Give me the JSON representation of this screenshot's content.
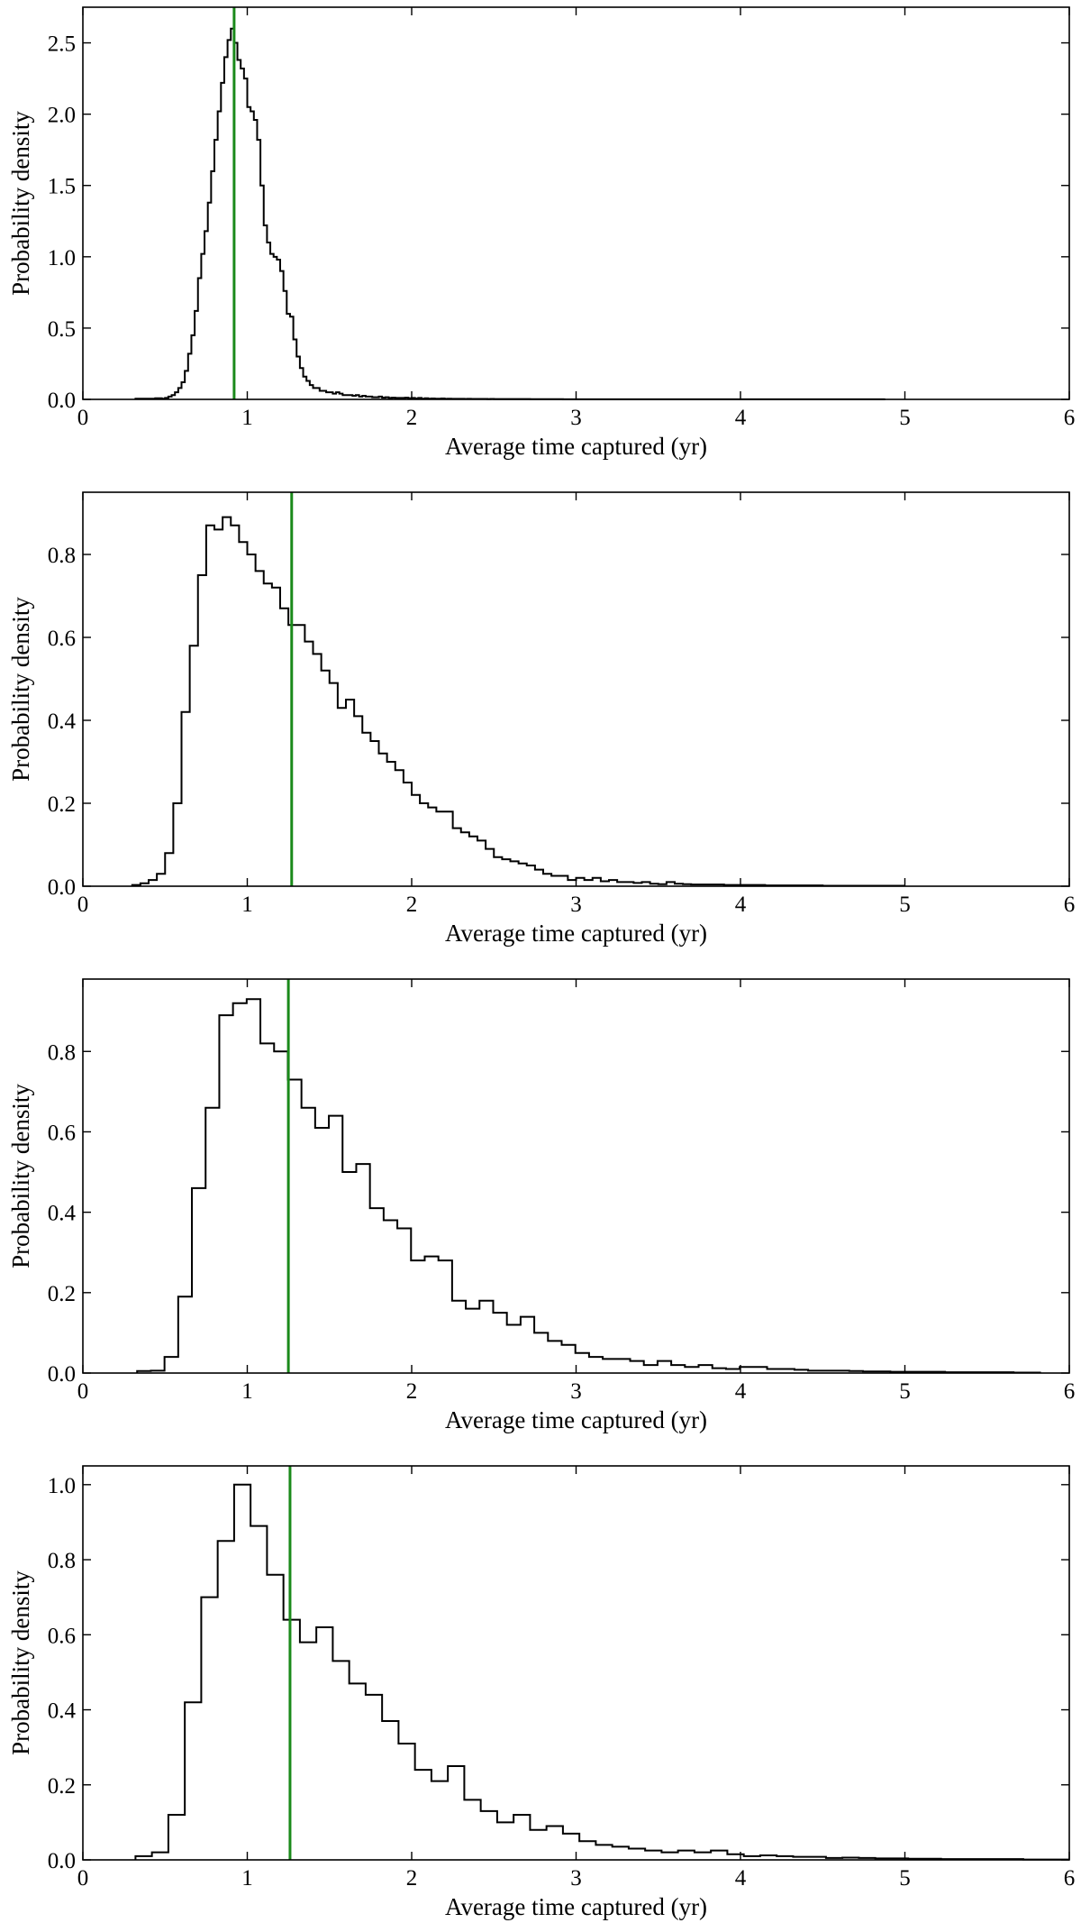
{
  "figure": {
    "colors": {
      "histogram": "#000000",
      "marker": "#1a8a1a",
      "axes": "#000000"
    }
  },
  "chart_data": [
    {
      "type": "histogram",
      "panel": 1,
      "xlabel": "Average time captured (yr)",
      "ylabel": "Probability density",
      "xlim": [
        0,
        6
      ],
      "ylim": [
        0,
        2.75
      ],
      "xticks": [
        "0",
        "1",
        "2",
        "3",
        "4",
        "5",
        "6"
      ],
      "yticks": [
        0,
        0.5,
        1.0,
        1.5,
        2.0,
        2.5
      ],
      "ytick_labels": [
        "0.0",
        "0.5",
        "1.0",
        "1.5",
        "2.0",
        "2.5"
      ],
      "marker_x": 0.92,
      "bins": {
        "start": 0.32,
        "width": 0.02
      },
      "density": [
        0.005,
        0.005,
        0.005,
        0.005,
        0.005,
        0.005,
        0.008,
        0.008,
        0.005,
        0.01,
        0.02,
        0.03,
        0.05,
        0.08,
        0.12,
        0.2,
        0.32,
        0.45,
        0.62,
        0.85,
        1.02,
        1.18,
        1.38,
        1.6,
        1.82,
        2.02,
        2.22,
        2.4,
        2.52,
        2.6,
        2.5,
        2.38,
        2.32,
        2.25,
        2.05,
        2.02,
        1.96,
        1.82,
        1.5,
        1.22,
        1.1,
        1.02,
        1.0,
        0.98,
        0.9,
        0.76,
        0.6,
        0.58,
        0.42,
        0.3,
        0.22,
        0.16,
        0.13,
        0.1,
        0.08,
        0.08,
        0.06,
        0.06,
        0.05,
        0.05,
        0.04,
        0.05,
        0.04,
        0.03,
        0.03,
        0.03,
        0.025,
        0.03,
        0.02,
        0.025,
        0.02,
        0.02,
        0.015,
        0.015,
        0.02,
        0.012,
        0.015,
        0.01,
        0.012,
        0.01,
        0.01,
        0.01,
        0.012,
        0.008,
        0.01,
        0.006,
        0.01,
        0.005,
        0.008,
        0.005,
        0.006,
        0.005,
        0.005,
        0.006,
        0.004,
        0.005,
        0.004,
        0.004,
        0.004,
        0.004,
        0.003,
        0.004,
        0.003,
        0.003,
        0.003,
        0.003,
        0.003,
        0.002,
        0.003,
        0.002,
        0.002,
        0.002,
        0.002,
        0.002,
        0.002,
        0.002,
        0.002,
        0.002,
        0.002,
        0.002,
        0.0015,
        0.0015,
        0.0015,
        0.0015,
        0.0015,
        0.0015,
        0.0015,
        0.0015,
        0.0015,
        0.0015,
        0.001,
        0.001,
        0.001,
        0.001,
        0.001,
        0.001,
        0.001,
        0.001,
        0.001,
        0.001,
        0.001,
        0.001,
        0.001,
        0.001,
        0.001,
        0.001,
        0.001,
        0.001,
        0.001,
        0.001,
        0.001,
        0.001,
        0.001,
        0.001,
        0.001,
        0.001,
        0.001,
        0.001,
        0.001,
        0.001,
        0.0008,
        0.0008,
        0.0008,
        0.0008,
        0.0008,
        0.0008,
        0.0008,
        0.0008,
        0.0008,
        0.0008,
        0.0008,
        0.0008,
        0.0008,
        0.0008,
        0.0008,
        0.0008,
        0.0008,
        0.0008,
        0.0008,
        0.0008,
        0.0008,
        0.0008,
        0.0008,
        0.0008,
        0.0005,
        0.0005,
        0.0005,
        0.0005,
        0.0005,
        0.0005,
        0.0005,
        0.0005,
        0.0005,
        0.0005,
        0.0005,
        0.0005,
        0.0005,
        0.0005,
        0.0005,
        0.0005,
        0.0005,
        0.0005,
        0.0005,
        0.0005,
        0.0005,
        0.0005,
        0.0005,
        0.0005,
        0.0005,
        0.0005,
        0.0005,
        0.0005,
        0.0005,
        0.0005,
        0.0005,
        0.0005,
        0.0005,
        0.0005,
        0.0005,
        0.0005,
        0.0005,
        0.0005,
        0.0005,
        0.0005,
        0.0005,
        0.0005,
        0.0005,
        0.0005
      ]
    },
    {
      "type": "histogram",
      "panel": 2,
      "xlabel": "Average time captured (yr)",
      "ylabel": "Probability density",
      "xlim": [
        0,
        6
      ],
      "ylim": [
        0,
        0.95
      ],
      "xticks": [
        "0",
        "1",
        "2",
        "3",
        "4",
        "5",
        "6"
      ],
      "yticks": [
        0,
        0.2,
        0.4,
        0.6,
        0.8
      ],
      "ytick_labels": [
        "0.0",
        "0.2",
        "0.4",
        "0.6",
        "0.8"
      ],
      "marker_x": 1.27,
      "bins": {
        "start": 0.3,
        "width": 0.05
      },
      "density": [
        0.003,
        0.007,
        0.015,
        0.03,
        0.08,
        0.2,
        0.42,
        0.58,
        0.75,
        0.87,
        0.86,
        0.89,
        0.87,
        0.83,
        0.8,
        0.76,
        0.73,
        0.72,
        0.67,
        0.63,
        0.63,
        0.59,
        0.56,
        0.52,
        0.49,
        0.43,
        0.45,
        0.41,
        0.37,
        0.35,
        0.32,
        0.3,
        0.28,
        0.25,
        0.22,
        0.2,
        0.19,
        0.18,
        0.18,
        0.14,
        0.13,
        0.12,
        0.11,
        0.09,
        0.07,
        0.065,
        0.06,
        0.055,
        0.05,
        0.04,
        0.03,
        0.025,
        0.025,
        0.015,
        0.02,
        0.015,
        0.02,
        0.012,
        0.015,
        0.01,
        0.01,
        0.008,
        0.01,
        0.006,
        0.005,
        0.01,
        0.006,
        0.005,
        0.004,
        0.004,
        0.004,
        0.004,
        0.003,
        0.003,
        0.003,
        0.003,
        0.003,
        0.002,
        0.002,
        0.002,
        0.002,
        0.002,
        0.002,
        0.002,
        0.001,
        0.001,
        0.001,
        0.001,
        0.001,
        0.001,
        0.001,
        0.001,
        0.001,
        0.001
      ]
    },
    {
      "type": "histogram",
      "panel": 3,
      "xlabel": "Average time captured (yr)",
      "ylabel": "Probability density",
      "xlim": [
        0,
        6
      ],
      "ylim": [
        0,
        0.98
      ],
      "xticks": [
        "0",
        "1",
        "2",
        "3",
        "4",
        "5",
        "6"
      ],
      "yticks": [
        0,
        0.2,
        0.4,
        0.6,
        0.8
      ],
      "ytick_labels": [
        "0.0",
        "0.2",
        "0.4",
        "0.6",
        "0.8"
      ],
      "marker_x": 1.25,
      "bins": {
        "start": 0.33,
        "width": 0.0833
      },
      "density": [
        0.005,
        0.006,
        0.04,
        0.19,
        0.46,
        0.66,
        0.89,
        0.92,
        0.93,
        0.82,
        0.8,
        0.73,
        0.66,
        0.61,
        0.64,
        0.5,
        0.52,
        0.41,
        0.38,
        0.36,
        0.28,
        0.29,
        0.28,
        0.18,
        0.16,
        0.18,
        0.15,
        0.12,
        0.14,
        0.1,
        0.08,
        0.07,
        0.05,
        0.04,
        0.035,
        0.035,
        0.03,
        0.02,
        0.03,
        0.02,
        0.015,
        0.02,
        0.012,
        0.01,
        0.015,
        0.015,
        0.01,
        0.01,
        0.008,
        0.006,
        0.006,
        0.006,
        0.005,
        0.004,
        0.004,
        0.003,
        0.003,
        0.003,
        0.003,
        0.002,
        0.002,
        0.002,
        0.002,
        0.002,
        0.001,
        0.001
      ]
    },
    {
      "type": "histogram",
      "panel": 4,
      "xlabel": "Average time captured (yr)",
      "ylabel": "Probability density",
      "xlim": [
        0,
        6
      ],
      "ylim": [
        0,
        1.05
      ],
      "xticks": [
        "0",
        "1",
        "2",
        "3",
        "4",
        "5",
        "6"
      ],
      "yticks": [
        0,
        0.2,
        0.4,
        0.6,
        0.8,
        1.0
      ],
      "ytick_labels": [
        "0.0",
        "0.2",
        "0.4",
        "0.6",
        "0.8",
        "1.0"
      ],
      "marker_x": 1.26,
      "bins": {
        "start": 0.32,
        "width": 0.1
      },
      "density": [
        0.01,
        0.02,
        0.12,
        0.42,
        0.7,
        0.85,
        1.0,
        0.89,
        0.76,
        0.64,
        0.58,
        0.62,
        0.53,
        0.47,
        0.44,
        0.37,
        0.31,
        0.24,
        0.21,
        0.25,
        0.16,
        0.13,
        0.1,
        0.12,
        0.08,
        0.09,
        0.07,
        0.05,
        0.04,
        0.035,
        0.03,
        0.025,
        0.02,
        0.025,
        0.02,
        0.025,
        0.015,
        0.01,
        0.012,
        0.01,
        0.008,
        0.008,
        0.005,
        0.006,
        0.005,
        0.004,
        0.004,
        0.003,
        0.003,
        0.002,
        0.002,
        0.002,
        0.002,
        0.002,
        0.001,
        0.001,
        0.001
      ]
    }
  ]
}
